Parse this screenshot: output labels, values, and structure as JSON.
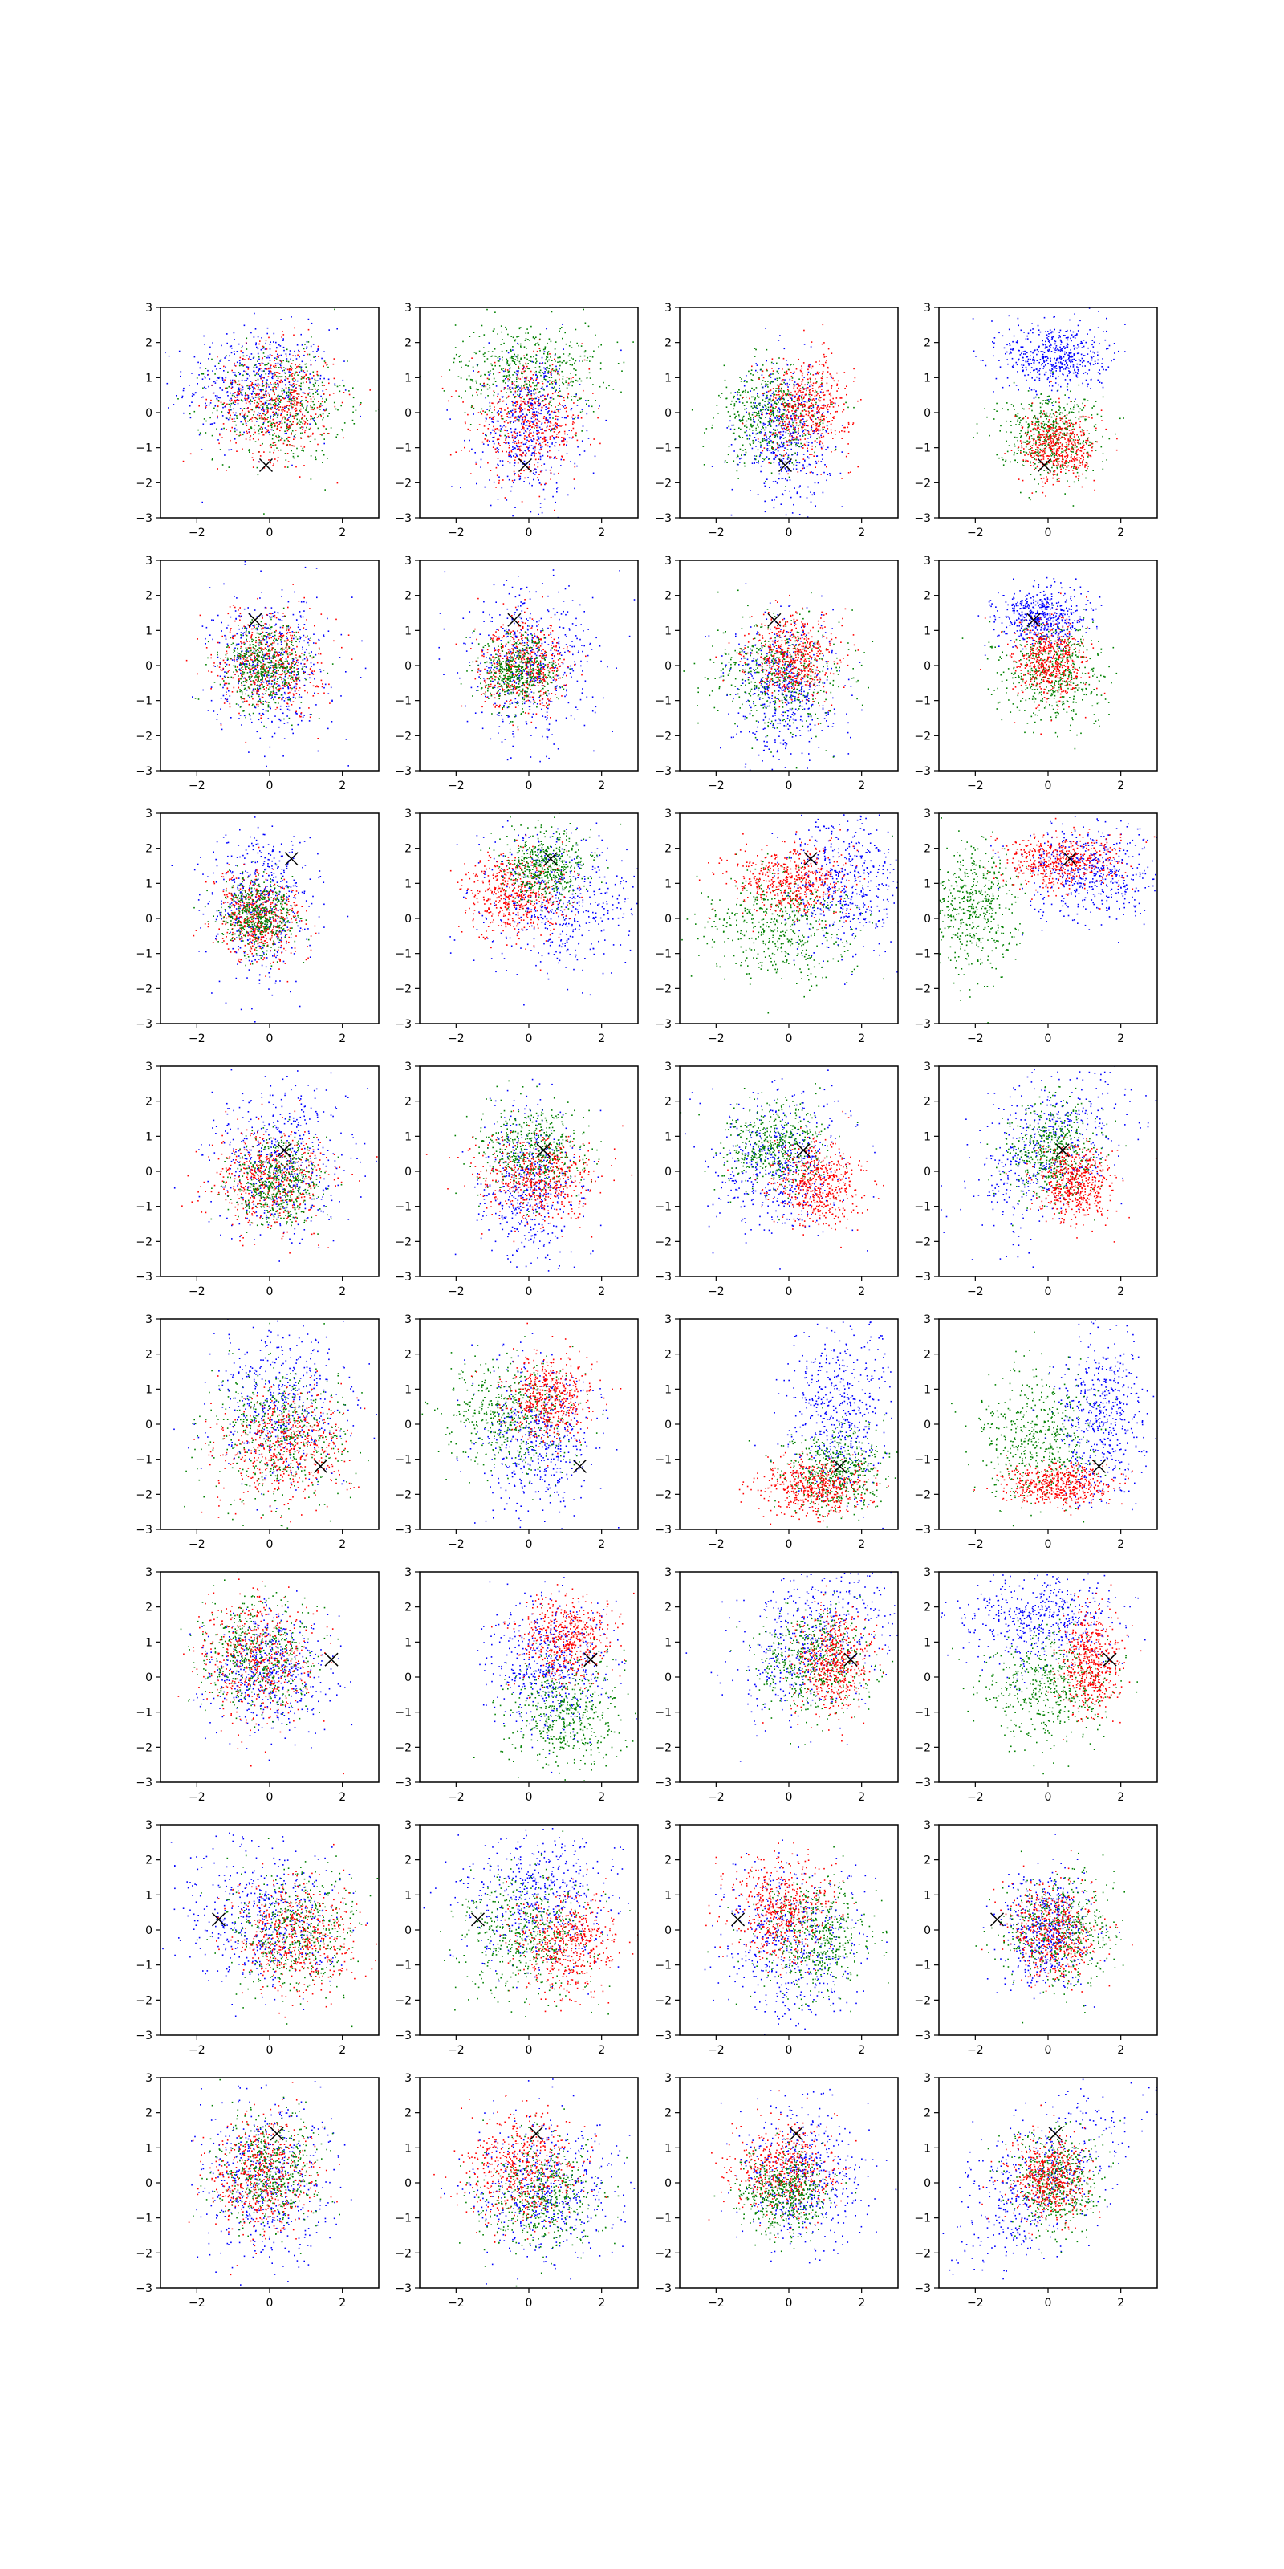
{
  "figure": {
    "rows": 8,
    "cols": 4,
    "series_colors": {
      "blue": "#0000ff",
      "red": "#ff0000",
      "green": "#008000"
    },
    "marker": {
      "symbol": "x",
      "color": "#000000"
    }
  },
  "chart_data": {
    "type": "scatter",
    "xlim": [
      -3,
      3
    ],
    "ylim": [
      -3,
      3
    ],
    "xticks": [
      -2,
      0,
      2
    ],
    "yticks": [
      -3,
      -2,
      -1,
      0,
      1,
      2,
      3
    ],
    "xtick_labels": [
      "−2",
      "0",
      "2"
    ],
    "ytick_labels": [
      "−3",
      "−2",
      "−1",
      "0",
      "1",
      "2",
      "3"
    ],
    "grid": false,
    "legend": "none",
    "row_markers": [
      {
        "x": -0.1,
        "y": -1.5
      },
      {
        "x": -0.4,
        "y": 1.3
      },
      {
        "x": 0.6,
        "y": 1.7
      },
      {
        "x": 0.4,
        "y": 0.6
      },
      {
        "x": 1.4,
        "y": -1.2
      },
      {
        "x": 1.7,
        "y": 0.5
      },
      {
        "x": -1.4,
        "y": 0.3
      },
      {
        "x": 0.2,
        "y": 1.4
      }
    ],
    "panels": [
      {
        "row": 0,
        "col": 0,
        "series": [
          {
            "color": "blue",
            "cx": -0.3,
            "cy": 0.8,
            "sx": 1.0,
            "sy": 0.8,
            "rho": 0
          },
          {
            "color": "green",
            "cx": 0.3,
            "cy": 0.2,
            "sx": 0.9,
            "sy": 0.8,
            "rho": 0
          },
          {
            "color": "red",
            "cx": 0.2,
            "cy": 0.3,
            "sx": 0.8,
            "sy": 0.8,
            "rho": 0
          }
        ]
      },
      {
        "row": 0,
        "col": 1,
        "series": [
          {
            "color": "green",
            "cx": 0.0,
            "cy": 1.2,
            "sx": 1.0,
            "sy": 0.7,
            "rho": 0
          },
          {
            "color": "blue",
            "cx": 0.0,
            "cy": -0.4,
            "sx": 0.7,
            "sy": 1.0,
            "rho": 0
          },
          {
            "color": "red",
            "cx": 0.0,
            "cy": -0.3,
            "sx": 0.8,
            "sy": 0.8,
            "rho": 0
          }
        ]
      },
      {
        "row": 0,
        "col": 2,
        "series": [
          {
            "color": "blue",
            "cx": -0.1,
            "cy": -0.6,
            "sx": 0.6,
            "sy": 1.0,
            "rho": 0
          },
          {
            "color": "green",
            "cx": -0.5,
            "cy": -0.1,
            "sx": 0.7,
            "sy": 0.7,
            "rho": 0
          },
          {
            "color": "red",
            "cx": 0.5,
            "cy": 0.2,
            "sx": 0.6,
            "sy": 0.7,
            "rho": 0
          }
        ]
      },
      {
        "row": 0,
        "col": 3,
        "series": [
          {
            "color": "blue",
            "cx": 0.2,
            "cy": 1.6,
            "sx": 0.7,
            "sy": 0.5,
            "rho": 0
          },
          {
            "color": "green",
            "cx": 0.0,
            "cy": -0.6,
            "sx": 0.7,
            "sy": 0.6,
            "rho": 0
          },
          {
            "color": "red",
            "cx": 0.3,
            "cy": -1.0,
            "sx": 0.5,
            "sy": 0.5,
            "rho": 0
          }
        ]
      },
      {
        "row": 1,
        "col": 0,
        "series": [
          {
            "color": "blue",
            "cx": 0.0,
            "cy": 0.0,
            "sx": 0.8,
            "sy": 1.0,
            "rho": 0
          },
          {
            "color": "red",
            "cx": 0.0,
            "cy": 0.1,
            "sx": 0.7,
            "sy": 0.7,
            "rho": 0
          },
          {
            "color": "green",
            "cx": -0.1,
            "cy": 0.0,
            "sx": 0.6,
            "sy": 0.6,
            "rho": 0
          }
        ]
      },
      {
        "row": 1,
        "col": 1,
        "series": [
          {
            "color": "blue",
            "cx": 0.0,
            "cy": 0.0,
            "sx": 0.9,
            "sy": 1.1,
            "rho": 0
          },
          {
            "color": "red",
            "cx": -0.1,
            "cy": 0.0,
            "sx": 0.6,
            "sy": 0.6,
            "rho": 0
          },
          {
            "color": "green",
            "cx": -0.3,
            "cy": -0.2,
            "sx": 0.5,
            "sy": 0.5,
            "rho": 0
          }
        ]
      },
      {
        "row": 1,
        "col": 2,
        "series": [
          {
            "color": "blue",
            "cx": -0.1,
            "cy": -0.6,
            "sx": 0.7,
            "sy": 1.0,
            "rho": 0
          },
          {
            "color": "green",
            "cx": -0.2,
            "cy": -0.2,
            "sx": 0.9,
            "sy": 0.8,
            "rho": 0
          },
          {
            "color": "red",
            "cx": 0.1,
            "cy": 0.2,
            "sx": 0.6,
            "sy": 0.6,
            "rho": 0
          }
        ]
      },
      {
        "row": 1,
        "col": 3,
        "series": [
          {
            "color": "blue",
            "cx": -0.2,
            "cy": 1.4,
            "sx": 0.6,
            "sy": 0.4,
            "rho": 0
          },
          {
            "color": "green",
            "cx": 0.2,
            "cy": -0.2,
            "sx": 0.7,
            "sy": 0.7,
            "rho": 0
          },
          {
            "color": "red",
            "cx": 0.0,
            "cy": 0.1,
            "sx": 0.5,
            "sy": 0.6,
            "rho": 0
          }
        ]
      },
      {
        "row": 2,
        "col": 0,
        "series": [
          {
            "color": "blue",
            "cx": -0.2,
            "cy": 0.4,
            "sx": 0.7,
            "sy": 1.1,
            "rho": 0
          },
          {
            "color": "red",
            "cx": -0.3,
            "cy": 0.0,
            "sx": 0.6,
            "sy": 0.6,
            "rho": 0
          },
          {
            "color": "green",
            "cx": -0.3,
            "cy": 0.1,
            "sx": 0.5,
            "sy": 0.5,
            "rho": 0
          }
        ]
      },
      {
        "row": 2,
        "col": 1,
        "series": [
          {
            "color": "blue",
            "cx": 0.8,
            "cy": 0.5,
            "sx": 1.1,
            "sy": 1.0,
            "rho": 0
          },
          {
            "color": "red",
            "cx": -0.4,
            "cy": 0.7,
            "sx": 0.7,
            "sy": 0.6,
            "rho": 0
          },
          {
            "color": "green",
            "cx": 0.5,
            "cy": 1.5,
            "sx": 0.6,
            "sy": 0.5,
            "rho": 0
          }
        ]
      },
      {
        "row": 2,
        "col": 2,
        "series": [
          {
            "color": "blue",
            "cx": 1.5,
            "cy": 1.0,
            "sx": 0.8,
            "sy": 1.0,
            "rho": 0
          },
          {
            "color": "green",
            "cx": -0.3,
            "cy": -0.2,
            "sx": 1.0,
            "sy": 0.8,
            "rho": 0
          },
          {
            "color": "red",
            "cx": 0.0,
            "cy": 1.1,
            "sx": 0.8,
            "sy": 0.5,
            "rho": 0
          }
        ]
      },
      {
        "row": 2,
        "col": 3,
        "series": [
          {
            "color": "blue",
            "cx": 1.2,
            "cy": 1.3,
            "sx": 0.9,
            "sy": 0.7,
            "rho": 0
          },
          {
            "color": "green",
            "cx": -2.1,
            "cy": 0.2,
            "sx": 0.6,
            "sy": 0.9,
            "rho": 0
          },
          {
            "color": "red",
            "cx": 0.3,
            "cy": 1.6,
            "sx": 0.8,
            "sy": 0.4,
            "rho": 0
          }
        ]
      },
      {
        "row": 3,
        "col": 0,
        "series": [
          {
            "color": "blue",
            "cx": 0.3,
            "cy": 0.3,
            "sx": 0.9,
            "sy": 1.1,
            "rho": 0
          },
          {
            "color": "red",
            "cx": 0.0,
            "cy": -0.2,
            "sx": 0.8,
            "sy": 0.7,
            "rho": 0
          },
          {
            "color": "green",
            "cx": 0.2,
            "cy": -0.3,
            "sx": 0.6,
            "sy": 0.6,
            "rho": 0
          }
        ]
      },
      {
        "row": 3,
        "col": 1,
        "series": [
          {
            "color": "blue",
            "cx": 0.0,
            "cy": -0.4,
            "sx": 0.7,
            "sy": 1.1,
            "rho": 0
          },
          {
            "color": "green",
            "cx": 0.1,
            "cy": 0.6,
            "sx": 0.7,
            "sy": 0.6,
            "rho": 0
          },
          {
            "color": "red",
            "cx": 0.3,
            "cy": -0.2,
            "sx": 0.8,
            "sy": 0.6,
            "rho": 0
          }
        ]
      },
      {
        "row": 3,
        "col": 2,
        "series": [
          {
            "color": "blue",
            "cx": -0.3,
            "cy": 0.2,
            "sx": 0.9,
            "sy": 1.0,
            "rho": 0
          },
          {
            "color": "green",
            "cx": -0.4,
            "cy": 0.7,
            "sx": 0.7,
            "sy": 0.6,
            "rho": 0
          },
          {
            "color": "red",
            "cx": 0.8,
            "cy": -0.4,
            "sx": 0.6,
            "sy": 0.6,
            "rho": 0
          }
        ]
      },
      {
        "row": 3,
        "col": 3,
        "series": [
          {
            "color": "blue",
            "cx": 0.0,
            "cy": 0.8,
            "sx": 1.0,
            "sy": 1.3,
            "rho": 0.4
          },
          {
            "color": "green",
            "cx": 0.1,
            "cy": 0.5,
            "sx": 0.6,
            "sy": 0.7,
            "rho": 0
          },
          {
            "color": "red",
            "cx": 0.8,
            "cy": -0.4,
            "sx": 0.5,
            "sy": 0.5,
            "rho": 0
          }
        ]
      },
      {
        "row": 4,
        "col": 0,
        "series": [
          {
            "color": "blue",
            "cx": 0.4,
            "cy": 0.6,
            "sx": 0.9,
            "sy": 1.2,
            "rho": 0
          },
          {
            "color": "green",
            "cx": 0.3,
            "cy": -0.3,
            "sx": 1.0,
            "sy": 1.0,
            "rho": 0
          },
          {
            "color": "red",
            "cx": 0.4,
            "cy": -0.6,
            "sx": 0.9,
            "sy": 0.8,
            "rho": 0
          }
        ]
      },
      {
        "row": 4,
        "col": 1,
        "series": [
          {
            "color": "blue",
            "cx": 0.2,
            "cy": -0.4,
            "sx": 0.8,
            "sy": 1.1,
            "rho": 0
          },
          {
            "color": "green",
            "cx": -0.5,
            "cy": 0.3,
            "sx": 0.9,
            "sy": 0.8,
            "rho": 0
          },
          {
            "color": "red",
            "cx": 0.6,
            "cy": 0.8,
            "sx": 0.6,
            "sy": 0.6,
            "rho": 0
          }
        ]
      },
      {
        "row": 4,
        "col": 2,
        "series": [
          {
            "color": "blue",
            "cx": 1.3,
            "cy": 0.3,
            "sx": 0.7,
            "sy": 1.3,
            "rho": 0
          },
          {
            "color": "green",
            "cx": 1.3,
            "cy": -1.3,
            "sx": 0.7,
            "sy": 0.6,
            "rho": 0
          },
          {
            "color": "red",
            "cx": 0.7,
            "cy": -1.8,
            "sx": 0.7,
            "sy": 0.4,
            "rho": 0
          }
        ]
      },
      {
        "row": 4,
        "col": 3,
        "series": [
          {
            "color": "blue",
            "cx": 1.5,
            "cy": 0.2,
            "sx": 0.6,
            "sy": 1.1,
            "rho": 0
          },
          {
            "color": "green",
            "cx": -0.3,
            "cy": -0.3,
            "sx": 0.8,
            "sy": 0.9,
            "rho": 0
          },
          {
            "color": "red",
            "cx": 0.3,
            "cy": -1.7,
            "sx": 0.7,
            "sy": 0.3,
            "rho": 0
          }
        ]
      },
      {
        "row": 5,
        "col": 0,
        "series": [
          {
            "color": "blue",
            "cx": 0.0,
            "cy": 0.2,
            "sx": 0.8,
            "sy": 0.8,
            "rho": 0
          },
          {
            "color": "green",
            "cx": -0.4,
            "cy": 0.6,
            "sx": 0.8,
            "sy": 0.8,
            "rho": 0
          },
          {
            "color": "red",
            "cx": -0.4,
            "cy": 0.5,
            "sx": 0.8,
            "sy": 0.9,
            "rho": 0
          }
        ]
      },
      {
        "row": 5,
        "col": 1,
        "series": [
          {
            "color": "blue",
            "cx": 0.6,
            "cy": 0.3,
            "sx": 0.8,
            "sy": 0.9,
            "rho": 0
          },
          {
            "color": "green",
            "cx": 1.0,
            "cy": -1.1,
            "sx": 0.8,
            "sy": 0.8,
            "rho": 0
          },
          {
            "color": "red",
            "cx": 1.0,
            "cy": 1.1,
            "sx": 0.6,
            "sy": 0.6,
            "rho": 0
          }
        ]
      },
      {
        "row": 5,
        "col": 2,
        "series": [
          {
            "color": "blue",
            "cx": 0.8,
            "cy": 1.1,
            "sx": 1.2,
            "sy": 1.2,
            "rho": 0.5
          },
          {
            "color": "green",
            "cx": 0.7,
            "cy": 0.4,
            "sx": 0.8,
            "sy": 0.8,
            "rho": 0
          },
          {
            "color": "red",
            "cx": 1.2,
            "cy": 0.4,
            "sx": 0.5,
            "sy": 0.7,
            "rho": 0
          }
        ]
      },
      {
        "row": 5,
        "col": 3,
        "series": [
          {
            "color": "blue",
            "cx": -0.2,
            "cy": 1.6,
            "sx": 1.1,
            "sy": 0.7,
            "rho": 0
          },
          {
            "color": "green",
            "cx": 0.0,
            "cy": -0.3,
            "sx": 0.9,
            "sy": 0.8,
            "rho": 0
          },
          {
            "color": "red",
            "cx": 1.2,
            "cy": 0.4,
            "sx": 0.4,
            "sy": 0.7,
            "rho": 0
          }
        ]
      },
      {
        "row": 6,
        "col": 0,
        "series": [
          {
            "color": "blue",
            "cx": -0.3,
            "cy": 0.3,
            "sx": 1.0,
            "sy": 1.0,
            "rho": 0
          },
          {
            "color": "green",
            "cx": 0.6,
            "cy": -0.1,
            "sx": 0.9,
            "sy": 0.9,
            "rho": 0
          },
          {
            "color": "red",
            "cx": 0.8,
            "cy": -0.2,
            "sx": 0.8,
            "sy": 0.8,
            "rho": 0
          }
        ]
      },
      {
        "row": 6,
        "col": 1,
        "series": [
          {
            "color": "blue",
            "cx": 0.3,
            "cy": 0.8,
            "sx": 1.0,
            "sy": 1.0,
            "rho": 0
          },
          {
            "color": "green",
            "cx": -0.1,
            "cy": -0.2,
            "sx": 0.9,
            "sy": 0.9,
            "rho": 0
          },
          {
            "color": "red",
            "cx": 1.0,
            "cy": -0.4,
            "sx": 0.7,
            "sy": 0.7,
            "rho": 0
          }
        ]
      },
      {
        "row": 6,
        "col": 2,
        "series": [
          {
            "color": "blue",
            "cx": 0.0,
            "cy": -0.4,
            "sx": 0.9,
            "sy": 1.1,
            "rho": 0
          },
          {
            "color": "green",
            "cx": 0.8,
            "cy": -0.2,
            "sx": 0.8,
            "sy": 0.8,
            "rho": 0
          },
          {
            "color": "red",
            "cx": -0.2,
            "cy": 0.6,
            "sx": 0.7,
            "sy": 0.7,
            "rho": 0
          }
        ]
      },
      {
        "row": 6,
        "col": 3,
        "series": [
          {
            "color": "blue",
            "cx": -0.1,
            "cy": 0.0,
            "sx": 0.6,
            "sy": 0.8,
            "rho": 0
          },
          {
            "color": "green",
            "cx": 0.3,
            "cy": 0.0,
            "sx": 0.8,
            "sy": 0.8,
            "rho": 0
          },
          {
            "color": "red",
            "cx": 0.1,
            "cy": -0.1,
            "sx": 0.6,
            "sy": 0.7,
            "rho": 0
          }
        ]
      },
      {
        "row": 7,
        "col": 0,
        "series": [
          {
            "color": "blue",
            "cx": -0.1,
            "cy": 0.0,
            "sx": 0.9,
            "sy": 1.1,
            "rho": 0
          },
          {
            "color": "green",
            "cx": 0.0,
            "cy": 0.3,
            "sx": 0.7,
            "sy": 0.8,
            "rho": 0
          },
          {
            "color": "red",
            "cx": -0.2,
            "cy": 0.2,
            "sx": 0.7,
            "sy": 0.8,
            "rho": 0
          }
        ]
      },
      {
        "row": 7,
        "col": 1,
        "series": [
          {
            "color": "blue",
            "cx": 0.4,
            "cy": -0.2,
            "sx": 1.0,
            "sy": 1.0,
            "rho": 0
          },
          {
            "color": "green",
            "cx": 0.3,
            "cy": -0.4,
            "sx": 0.8,
            "sy": 0.8,
            "rho": 0
          },
          {
            "color": "red",
            "cx": -0.2,
            "cy": 0.4,
            "sx": 0.8,
            "sy": 0.8,
            "rho": 0
          }
        ]
      },
      {
        "row": 7,
        "col": 2,
        "series": [
          {
            "color": "blue",
            "cx": 0.4,
            "cy": 0.2,
            "sx": 0.8,
            "sy": 1.0,
            "rho": 0
          },
          {
            "color": "red",
            "cx": -0.2,
            "cy": 0.3,
            "sx": 0.7,
            "sy": 0.7,
            "rho": 0
          },
          {
            "color": "green",
            "cx": -0.1,
            "cy": -0.3,
            "sx": 0.6,
            "sy": 0.6,
            "rho": 0
          }
        ]
      },
      {
        "row": 7,
        "col": 3,
        "series": [
          {
            "color": "blue",
            "cx": -0.3,
            "cy": 0.0,
            "sx": 1.2,
            "sy": 1.2,
            "rho": 0.6
          },
          {
            "color": "green",
            "cx": 0.2,
            "cy": 0.1,
            "sx": 0.6,
            "sy": 0.7,
            "rho": 0
          },
          {
            "color": "red",
            "cx": 0.0,
            "cy": 0.1,
            "sx": 0.5,
            "sy": 0.6,
            "rho": 0
          }
        ]
      }
    ]
  }
}
